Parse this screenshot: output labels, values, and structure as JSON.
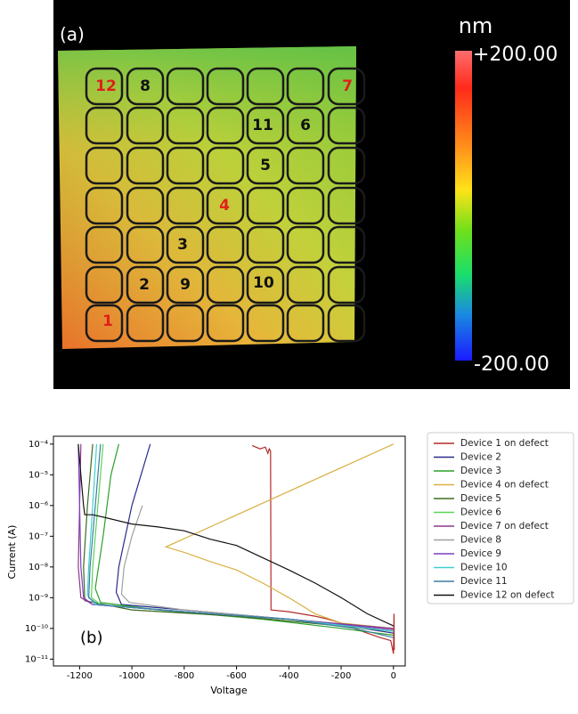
{
  "panel_a": {
    "label": "(a)",
    "colorbar_unit": "nm",
    "colorbar_max": "+200.00",
    "colorbar_min": "-200.00",
    "device_labels": [
      "12",
      "8",
      "7",
      "11",
      "6",
      "5",
      "4",
      "3",
      "2",
      "9",
      "10",
      "1"
    ]
  },
  "chart_data": {
    "type": "line",
    "annotation": "(b)",
    "xlabel": "Voltage",
    "ylabel": "Current (A)",
    "log_y": true,
    "grid": false,
    "legend": "outside right",
    "xlim": [
      -1300,
      45
    ],
    "xticks": [
      -1200,
      -1000,
      -800,
      -600,
      -400,
      -200,
      0
    ],
    "ylim": [
      6e-12,
      0.00018
    ],
    "yticks": [
      {
        "value": 0.0001,
        "label": "10⁻⁴"
      },
      {
        "value": 1e-05,
        "label": "10⁻⁵"
      },
      {
        "value": 1e-06,
        "label": "10⁻⁶"
      },
      {
        "value": 1e-07,
        "label": "10⁻⁷"
      },
      {
        "value": 1e-08,
        "label": "10⁻⁸"
      },
      {
        "value": 1e-09,
        "label": "10⁻⁹"
      },
      {
        "value": 1e-10,
        "label": "10⁻¹⁰"
      },
      {
        "value": 1e-11,
        "label": "10⁻¹¹"
      }
    ],
    "series": [
      {
        "name": "Device 1 on defect",
        "color": "#b22a2a",
        "x": [
          -540,
          -510,
          -490,
          -480,
          -475,
          -470,
          -468,
          -400,
          -300,
          -250,
          -200,
          -150,
          -100,
          -50,
          -10,
          0,
          2,
          3
        ],
        "values": [
          9e-05,
          7e-05,
          8e-05,
          5e-05,
          7e-05,
          6e-05,
          4e-10,
          3.5e-10,
          2.5e-10,
          2e-10,
          1.5e-10,
          1e-10,
          7e-11,
          5e-11,
          4e-11,
          1.5e-11,
          3e-10,
          2e-11
        ]
      },
      {
        "name": "Device 2",
        "color": "#2a2a8c",
        "x": [
          -930,
          -1000,
          -1050,
          -1060,
          -1040,
          -800,
          -400,
          -200,
          0
        ],
        "values": [
          0.0001,
          1e-06,
          1e-08,
          1.5e-09,
          6e-10,
          4e-10,
          2e-10,
          1.3e-10,
          7e-11
        ]
      },
      {
        "name": "Device 3",
        "color": "#2ca02c",
        "x": [
          -1050,
          -1080,
          -1110,
          -1140,
          -1120,
          -900,
          -500,
          -200,
          0
        ],
        "values": [
          0.0001,
          1e-05,
          1e-07,
          2e-09,
          7e-10,
          4e-10,
          2e-10,
          1e-10,
          6e-11
        ]
      },
      {
        "name": "Device 4 on defect",
        "color": "#d9b041",
        "x": [
          0,
          -870,
          -800,
          -700,
          -600,
          -500,
          -400,
          -300,
          -200,
          0
        ],
        "values": [
          0.0001,
          4.5e-08,
          3e-08,
          1.5e-08,
          8e-09,
          3e-09,
          1e-09,
          3e-10,
          1.5e-10,
          1e-10
        ]
      },
      {
        "name": "Device 5",
        "color": "#3d6b1f",
        "x": [
          -1150,
          -1170,
          -1185,
          -1180,
          -1000,
          -600,
          -200,
          0
        ],
        "values": [
          0.0001,
          1e-06,
          1e-08,
          8e-10,
          4e-10,
          2.5e-10,
          1.2e-10,
          8e-11
        ]
      },
      {
        "name": "Device 6",
        "color": "#5ad35a",
        "x": [
          -1110,
          -1130,
          -1150,
          -1155,
          -1120,
          -800,
          -400,
          0
        ],
        "values": [
          0.0001,
          1e-06,
          1e-08,
          1e-09,
          6e-10,
          3.5e-10,
          2e-10,
          9e-11
        ]
      },
      {
        "name": "Device 7 on defect",
        "color": "#8b3a8b",
        "x": [
          -1195,
          -1200,
          -1205,
          -1195,
          -1150,
          -800,
          -400,
          0
        ],
        "values": [
          0.0001,
          1e-06,
          1e-08,
          1e-09,
          6e-10,
          3.5e-10,
          2e-10,
          1e-10
        ]
      },
      {
        "name": "Device 8",
        "color": "#a0a0a0",
        "x": [
          -960,
          -1000,
          -1030,
          -1040,
          -1010,
          -800,
          -400,
          0
        ],
        "values": [
          1e-06,
          1e-07,
          1e-08,
          1.3e-09,
          7e-10,
          4e-10,
          2e-10,
          8e-11
        ]
      },
      {
        "name": "Device 9",
        "color": "#7f3fbf",
        "x": [
          -1205,
          -1200,
          -1195,
          -1185,
          -1150,
          -800,
          -400,
          0
        ],
        "values": [
          0.0001,
          1e-06,
          1e-08,
          1e-09,
          6e-10,
          3.5e-10,
          2e-10,
          9e-11
        ]
      },
      {
        "name": "Device 10",
        "color": "#40d0d0",
        "x": [
          -1135,
          -1150,
          -1165,
          -1170,
          -1140,
          -800,
          -400,
          0
        ],
        "values": [
          0.0001,
          1e-06,
          1e-08,
          1.2e-09,
          6e-10,
          3.5e-10,
          2e-10,
          8e-11
        ]
      },
      {
        "name": "Device 11",
        "color": "#3b7ea1",
        "x": [
          -1120,
          -1140,
          -1160,
          -1165,
          -1130,
          -800,
          -400,
          -150,
          0
        ],
        "values": [
          0.0001,
          1e-06,
          1e-08,
          1e-09,
          6e-10,
          3.5e-10,
          2e-10,
          1e-10,
          5e-11
        ]
      },
      {
        "name": "Device 12 on defect",
        "color": "#111111",
        "x": [
          -1205,
          -1195,
          -1185,
          -1180,
          -1150,
          -1100,
          -1000,
          -900,
          -800,
          -700,
          -600,
          -500,
          -400,
          -300,
          -200,
          -100,
          0
        ],
        "values": [
          0.0001,
          1e-05,
          1e-06,
          5e-07,
          5e-07,
          4e-07,
          2.5e-07,
          2e-07,
          1.5e-07,
          8e-08,
          5e-08,
          2e-08,
          8e-09,
          3e-09,
          1e-09,
          3e-10,
          1.2e-10
        ]
      }
    ]
  }
}
